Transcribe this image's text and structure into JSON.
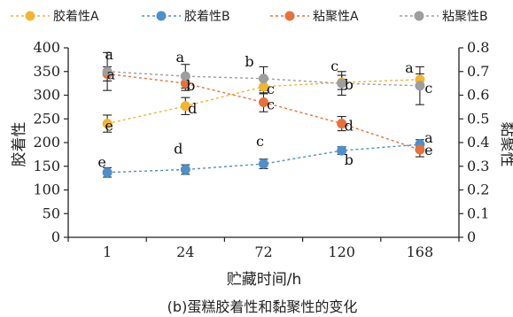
{
  "chart_data": {
    "type": "line",
    "x_categories": [
      "1",
      "24",
      "72",
      "120",
      "168"
    ],
    "xlabel": "贮藏时间/h",
    "ylabel_left": "胶着性",
    "ylabel_right": "黏聚性",
    "ylim_left": [
      0,
      400
    ],
    "ylim_right": [
      0,
      0.8
    ],
    "yticks_left": [
      "0",
      "50",
      "100",
      "150",
      "200",
      "250",
      "300",
      "350",
      "400"
    ],
    "yticks_right": [
      "0",
      "0.1",
      "0.2",
      "0.3",
      "0.4",
      "0.5",
      "0.6",
      "0.7",
      "0.8"
    ],
    "caption": "(b)蛋糕胶着性和黏聚性的变化",
    "legend_position": "top",
    "series": [
      {
        "name": "胶着性A",
        "axis": "left",
        "color": "#F2B531",
        "values": [
          240,
          277,
          318,
          327,
          333
        ],
        "errors": [
          18,
          18,
          15,
          15,
          12
        ],
        "labels": [
          "e",
          "d",
          "c",
          "b",
          "a"
        ]
      },
      {
        "name": "胶着性B",
        "axis": "left",
        "color": "#4F8FCB",
        "values": [
          137,
          143,
          155,
          183,
          196
        ],
        "errors": [
          10,
          10,
          10,
          8,
          10
        ],
        "labels": [
          "e",
          "d",
          "c",
          "b",
          "a"
        ]
      },
      {
        "name": "粘聚性A",
        "axis": "right",
        "color": "#E8703A",
        "values": [
          0.69,
          0.65,
          0.57,
          0.48,
          0.37
        ],
        "errors": [
          0.03,
          0.03,
          0.04,
          0.03,
          0.03
        ],
        "labels": [
          "a",
          "b",
          "c",
          "d",
          "e"
        ]
      },
      {
        "name": "粘聚性B",
        "axis": "right",
        "color": "#9E9E9E",
        "values": [
          0.7,
          0.68,
          0.67,
          0.65,
          0.64
        ],
        "errors": [
          0.08,
          0.05,
          0.05,
          0.05,
          0.08
        ],
        "labels": [
          "a",
          "a",
          "b",
          "c",
          "c"
        ]
      }
    ]
  }
}
